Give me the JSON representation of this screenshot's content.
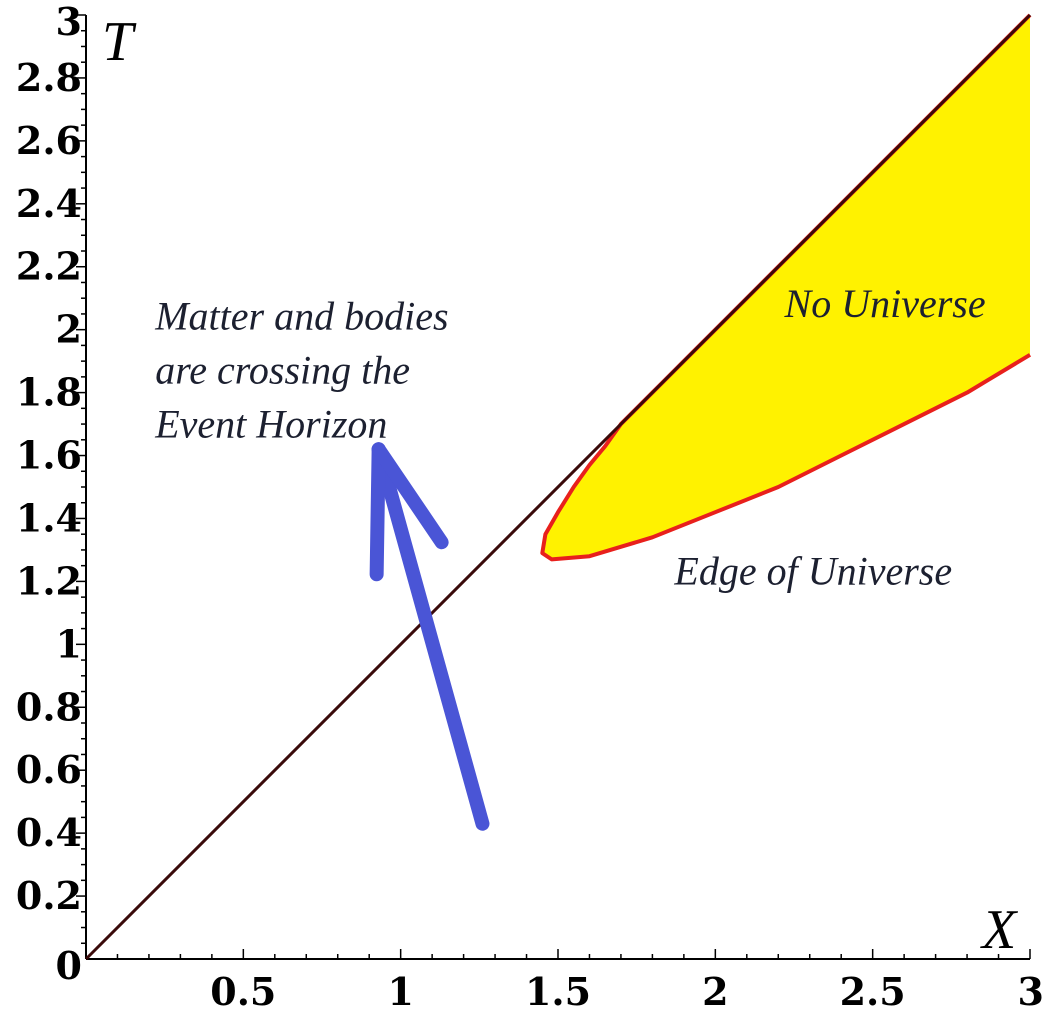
{
  "chart_data": {
    "type": "area",
    "xlabel": "X",
    "ylabel": "T",
    "xlim": [
      0,
      3
    ],
    "ylim": [
      0,
      3
    ],
    "x_ticks": [
      {
        "value": 0.5,
        "label": "0.5"
      },
      {
        "value": 1,
        "label": "1"
      },
      {
        "value": 1.5,
        "label": "1.5"
      },
      {
        "value": 2,
        "label": "2"
      },
      {
        "value": 2.5,
        "label": "2.5"
      },
      {
        "value": 3,
        "label": "3"
      }
    ],
    "y_ticks": [
      {
        "value": 0,
        "label": "0"
      },
      {
        "value": 0.2,
        "label": "0.2"
      },
      {
        "value": 0.4,
        "label": "0.4"
      },
      {
        "value": 0.6,
        "label": "0.6"
      },
      {
        "value": 0.8,
        "label": "0.8"
      },
      {
        "value": 1,
        "label": "1"
      },
      {
        "value": 1.2,
        "label": "1.2"
      },
      {
        "value": 1.4,
        "label": "1.4"
      },
      {
        "value": 1.6,
        "label": "1.6"
      },
      {
        "value": 1.8,
        "label": "1.8"
      },
      {
        "value": 2,
        "label": "2"
      },
      {
        "value": 2.2,
        "label": "2.2"
      },
      {
        "value": 2.4,
        "label": "2.4"
      },
      {
        "value": 2.6,
        "label": "2.6"
      },
      {
        "value": 2.8,
        "label": "2.8"
      },
      {
        "value": 3,
        "label": "3"
      }
    ],
    "grid": false,
    "series": [
      {
        "kind": "line",
        "color": "#3a0a0a",
        "points": [
          [
            0,
            0
          ],
          [
            3,
            3
          ]
        ]
      },
      {
        "kind": "region",
        "fill": "#fff200",
        "stroke": "#e8201c",
        "boundary": [
          [
            3.0,
            3.0
          ],
          [
            2.8,
            2.8
          ],
          [
            2.6,
            2.6
          ],
          [
            2.4,
            2.4
          ],
          [
            2.2,
            2.2
          ],
          [
            2.0,
            2.0
          ],
          [
            1.9,
            1.9
          ],
          [
            1.8,
            1.8
          ],
          [
            1.7,
            1.7
          ],
          [
            1.65,
            1.63
          ],
          [
            1.6,
            1.57
          ],
          [
            1.55,
            1.5
          ],
          [
            1.5,
            1.42
          ],
          [
            1.46,
            1.35
          ],
          [
            1.45,
            1.29
          ],
          [
            1.48,
            1.27
          ],
          [
            1.6,
            1.28
          ],
          [
            1.8,
            1.34
          ],
          [
            2.0,
            1.42
          ],
          [
            2.2,
            1.5
          ],
          [
            2.4,
            1.6
          ],
          [
            2.6,
            1.7
          ],
          [
            2.8,
            1.8
          ],
          [
            3.0,
            1.92
          ]
        ]
      }
    ],
    "annotations": [
      {
        "lines": [
          "Matter and bodies",
          "are crossing the",
          "Event Horizon"
        ],
        "x": 0.22,
        "y": 2.0
      },
      {
        "lines": [
          "No Universe"
        ],
        "x": 2.22,
        "y": 2.04
      },
      {
        "lines": [
          "Edge of Universe"
        ],
        "x": 1.87,
        "y": 1.19
      }
    ],
    "arrow": {
      "color": "#4a55d6",
      "from": [
        1.26,
        0.43
      ],
      "to": [
        0.93,
        1.62
      ]
    }
  }
}
